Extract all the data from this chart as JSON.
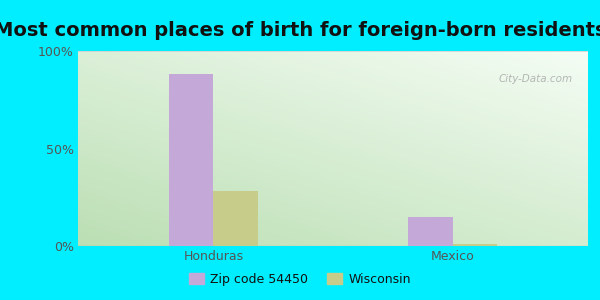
{
  "title": "Most common places of birth for foreign-born residents",
  "categories": [
    "Honduras",
    "Mexico"
  ],
  "series": [
    {
      "label": "Zip code 54450",
      "values": [
        88,
        15
      ],
      "color": "#c4a8d8"
    },
    {
      "label": "Wisconsin",
      "values": [
        28,
        1
      ],
      "color": "#c8cc8a"
    }
  ],
  "ylim": [
    0,
    100
  ],
  "yticks": [
    0,
    50,
    100
  ],
  "ytick_labels": [
    "0%",
    "50%",
    "100%"
  ],
  "background_outer": "#00eeff",
  "bar_width": 0.28,
  "title_fontsize": 14,
  "label_fontsize": 9,
  "legend_fontsize": 9,
  "watermark": "City-Data.com",
  "tick_color": "#555555",
  "gradient_colors": [
    "#c8e8c0",
    "#f8fff8"
  ],
  "gradient_colors2": [
    "#e0f4e0",
    "#ffffff"
  ]
}
